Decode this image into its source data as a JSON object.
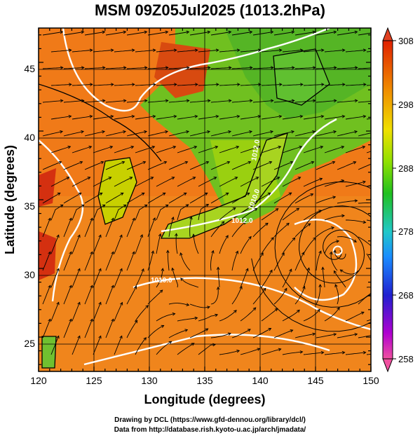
{
  "title": "MSM 09Z05Jul2025 (1013.2hPa)",
  "xlabel": "Longitude (degrees)",
  "ylabel": "Latitude  (degrees)",
  "x_ticks": [
    "120",
    "125",
    "130",
    "135",
    "140",
    "145",
    "150"
  ],
  "y_ticks": [
    "25",
    "30",
    "35",
    "40",
    "45"
  ],
  "colorbar": {
    "ticks": [
      "308",
      "298",
      "288",
      "278",
      "268",
      "258"
    ],
    "colors": [
      "#f0509a",
      "#c000d0",
      "#2020d0",
      "#2080ff",
      "#20c0c0",
      "#20c020",
      "#90e000",
      "#f0e000",
      "#f09000",
      "#e02000"
    ]
  },
  "map": {
    "lon_range": [
      120,
      150
    ],
    "lat_range": [
      22.5,
      47.5
    ],
    "field": "temperature (K)",
    "color_range": [
      258,
      308
    ],
    "contour_labels": [
      "1010.0",
      "1010.0",
      "1012.0",
      "1012.0"
    ],
    "typhoon_center": {
      "lon": 147.0,
      "lat": 31.3
    }
  },
  "credits": {
    "line1": "Drawing by DCL (https://www.gfd-dennou.org/library/dcl/)",
    "line2": "Data from http://database.rish.kyoto-u.ac.jp/arch/jmadata/"
  }
}
